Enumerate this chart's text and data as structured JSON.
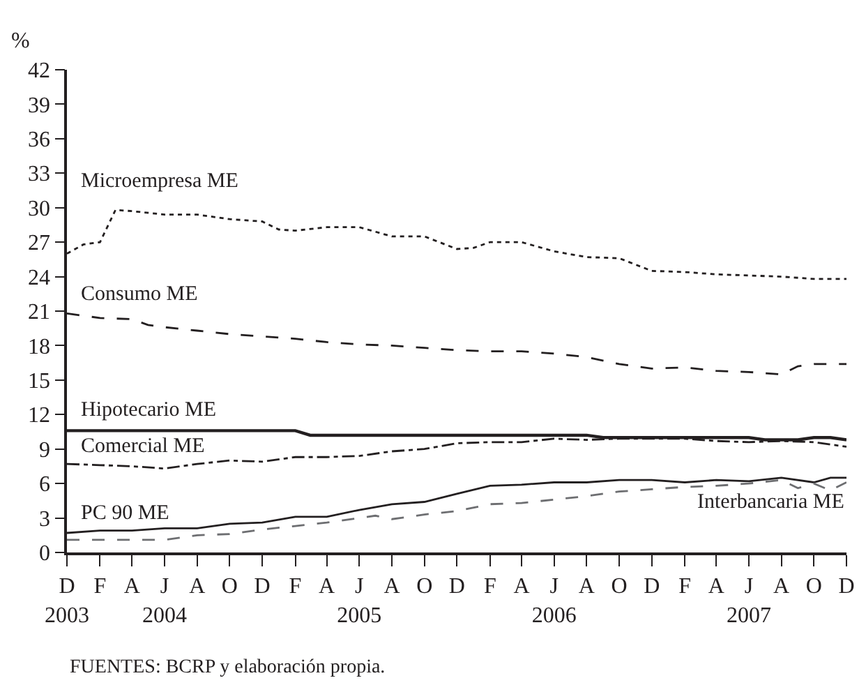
{
  "chart_data": {
    "type": "line",
    "ylabel": "%",
    "ylim": [
      0,
      42
    ],
    "yticks": [
      0,
      3,
      6,
      9,
      12,
      15,
      18,
      21,
      24,
      27,
      30,
      33,
      36,
      39,
      42
    ],
    "xlim": [
      "2003-12",
      "2007-12"
    ],
    "xticks": [
      {
        "value": "2003-12",
        "label": "D\n2003"
      },
      {
        "value": "2004-02",
        "label": "F"
      },
      {
        "value": "2004-04",
        "label": "A"
      },
      {
        "value": "2004-06",
        "label": "J\n2004"
      },
      {
        "value": "2004-08",
        "label": "A"
      },
      {
        "value": "2004-10",
        "label": "O"
      },
      {
        "value": "2004-12",
        "label": "D"
      },
      {
        "value": "2005-02",
        "label": "F"
      },
      {
        "value": "2005-04",
        "label": "A"
      },
      {
        "value": "2005-06",
        "label": "J\n2005"
      },
      {
        "value": "2005-08",
        "label": "A"
      },
      {
        "value": "2005-10",
        "label": "O"
      },
      {
        "value": "2005-12",
        "label": "D"
      },
      {
        "value": "2006-02",
        "label": "F"
      },
      {
        "value": "2006-04",
        "label": "A"
      },
      {
        "value": "2006-06",
        "label": "J\n2006"
      },
      {
        "value": "2006-08",
        "label": "A"
      },
      {
        "value": "2006-10",
        "label": "O"
      },
      {
        "value": "2006-12",
        "label": "D"
      },
      {
        "value": "2007-02",
        "label": "F"
      },
      {
        "value": "2007-04",
        "label": "A"
      },
      {
        "value": "2007-06",
        "label": "J\n2007"
      },
      {
        "value": "2007-08",
        "label": "A"
      },
      {
        "value": "2007-10",
        "label": "O"
      },
      {
        "value": "2007-12",
        "label": "D"
      }
    ],
    "legend": false,
    "marker": "none",
    "annotations": [
      "FUENTES: BCRP y elaboración propia."
    ],
    "series": [
      {
        "name": "Microempresa ME",
        "color": "#231f20",
        "line_style": "dotted",
        "x": [
          "2003-12",
          "2004-01",
          "2004-02",
          "2004-03",
          "2004-04",
          "2004-06",
          "2004-08",
          "2004-10",
          "2004-12",
          "2005-01",
          "2005-02",
          "2005-04",
          "2005-06",
          "2005-08",
          "2005-10",
          "2005-12",
          "2006-01",
          "2006-02",
          "2006-04",
          "2006-06",
          "2006-08",
          "2006-10",
          "2006-12",
          "2007-02",
          "2007-04",
          "2007-06",
          "2007-08",
          "2007-10",
          "2007-12"
        ],
        "values": [
          26.0,
          26.8,
          27.0,
          29.8,
          29.7,
          29.4,
          29.4,
          29.0,
          28.8,
          28.1,
          28.0,
          28.3,
          28.3,
          27.5,
          27.5,
          26.4,
          26.5,
          27.0,
          27.0,
          26.2,
          25.7,
          25.6,
          24.5,
          24.4,
          24.2,
          24.1,
          24.0,
          23.8,
          23.8
        ]
      },
      {
        "name": "Consumo ME",
        "color": "#231f20",
        "line_style": "dashed",
        "x": [
          "2003-12",
          "2004-02",
          "2004-04",
          "2004-05",
          "2004-06",
          "2004-08",
          "2004-10",
          "2004-12",
          "2005-02",
          "2005-04",
          "2005-06",
          "2005-08",
          "2005-10",
          "2005-12",
          "2006-02",
          "2006-04",
          "2006-06",
          "2006-08",
          "2006-10",
          "2006-12",
          "2007-02",
          "2007-04",
          "2007-06",
          "2007-08",
          "2007-09",
          "2007-10",
          "2007-12"
        ],
        "values": [
          20.8,
          20.4,
          20.3,
          19.8,
          19.6,
          19.3,
          19.0,
          18.8,
          18.6,
          18.3,
          18.1,
          18.0,
          17.8,
          17.6,
          17.5,
          17.5,
          17.3,
          17.0,
          16.4,
          16.0,
          16.1,
          15.8,
          15.7,
          15.5,
          16.2,
          16.4,
          16.4
        ]
      },
      {
        "name": "Hipotecario ME",
        "color": "#231f20",
        "line_style": "solid",
        "x": [
          "2003-12",
          "2005-02",
          "2005-03",
          "2006-08",
          "2006-09",
          "2007-06",
          "2007-07",
          "2007-09",
          "2007-10",
          "2007-11",
          "2007-12"
        ],
        "values": [
          10.6,
          10.6,
          10.2,
          10.2,
          10.0,
          10.0,
          9.8,
          9.8,
          10.0,
          10.0,
          9.8
        ]
      },
      {
        "name": "Comercial ME",
        "color": "#231f20",
        "line_style": "dashdot",
        "x": [
          "2003-12",
          "2004-02",
          "2004-04",
          "2004-06",
          "2004-08",
          "2004-10",
          "2004-12",
          "2005-02",
          "2005-04",
          "2005-06",
          "2005-08",
          "2005-10",
          "2005-12",
          "2006-02",
          "2006-04",
          "2006-06",
          "2006-08",
          "2006-10",
          "2006-12",
          "2007-02",
          "2007-04",
          "2007-06",
          "2007-08",
          "2007-10",
          "2007-12"
        ],
        "values": [
          7.7,
          7.6,
          7.5,
          7.3,
          7.7,
          8.0,
          7.9,
          8.3,
          8.3,
          8.4,
          8.8,
          9.0,
          9.5,
          9.6,
          9.6,
          9.9,
          9.8,
          9.9,
          9.9,
          9.9,
          9.7,
          9.6,
          9.7,
          9.6,
          9.2
        ]
      },
      {
        "name": "PC 90 ME",
        "color": "#231f20",
        "line_style": "solid",
        "x": [
          "2003-12",
          "2004-02",
          "2004-04",
          "2004-06",
          "2004-08",
          "2004-10",
          "2004-12",
          "2005-02",
          "2005-04",
          "2005-06",
          "2005-08",
          "2005-10",
          "2005-12",
          "2006-02",
          "2006-04",
          "2006-06",
          "2006-08",
          "2006-10",
          "2006-12",
          "2007-02",
          "2007-04",
          "2007-06",
          "2007-08",
          "2007-10",
          "2007-11",
          "2007-12"
        ],
        "values": [
          1.7,
          1.9,
          1.9,
          2.1,
          2.1,
          2.5,
          2.6,
          3.1,
          3.1,
          3.7,
          4.2,
          4.4,
          5.1,
          5.8,
          5.9,
          6.1,
          6.1,
          6.3,
          6.3,
          6.1,
          6.3,
          6.2,
          6.5,
          6.1,
          6.5,
          6.5
        ]
      },
      {
        "name": "Interbancaria ME",
        "color": "#6d6e71",
        "line_style": "dashed",
        "x": [
          "2003-12",
          "2004-02",
          "2004-04",
          "2004-06",
          "2004-08",
          "2004-10",
          "2004-12",
          "2005-02",
          "2005-04",
          "2005-06",
          "2005-07",
          "2005-08",
          "2005-10",
          "2005-12",
          "2006-02",
          "2006-04",
          "2006-06",
          "2006-08",
          "2006-10",
          "2006-12",
          "2007-02",
          "2007-04",
          "2007-06",
          "2007-08",
          "2007-09",
          "2007-10",
          "2007-11",
          "2007-12"
        ],
        "values": [
          1.1,
          1.1,
          1.1,
          1.1,
          1.5,
          1.6,
          2.0,
          2.3,
          2.6,
          3.0,
          3.2,
          2.9,
          3.3,
          3.6,
          4.2,
          4.3,
          4.6,
          4.9,
          5.3,
          5.5,
          5.7,
          5.8,
          6.0,
          6.3,
          5.6,
          6.0,
          5.4,
          6.1
        ]
      }
    ]
  }
}
